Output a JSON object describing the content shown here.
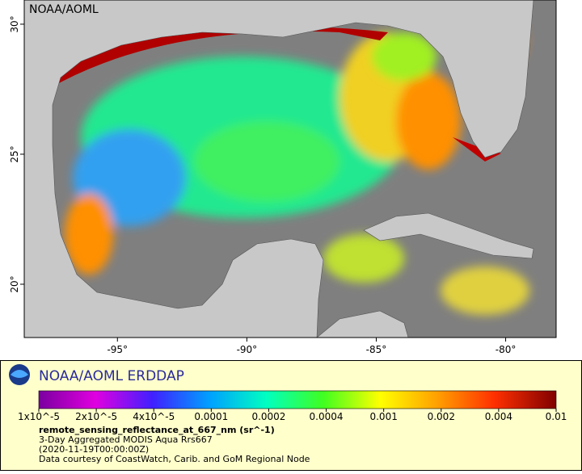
{
  "map": {
    "title": "NOAA/AOML",
    "xlim": [
      -98.6,
      -78.05
    ],
    "ylim": [
      17.95,
      30.93
    ],
    "xticks": [
      {
        "value": -95,
        "label": "-95°"
      },
      {
        "value": -90,
        "label": "-90°"
      },
      {
        "value": -85,
        "label": "-85°"
      },
      {
        "value": -80,
        "label": "-80°"
      }
    ],
    "yticks": [
      {
        "value": 20,
        "label": "20°"
      },
      {
        "value": 25,
        "label": "25°"
      },
      {
        "value": 30,
        "label": "30°"
      }
    ]
  },
  "legend": {
    "org": "NOAA/AOML ERDDAP",
    "colorbar": {
      "scale": "log",
      "ticks": [
        {
          "value": 1e-05,
          "label": "1x10^-5"
        },
        {
          "value": 2e-05,
          "label": "2x10^-5"
        },
        {
          "value": 4e-05,
          "label": "4x10^-5"
        },
        0.0001,
        0.0002,
        0.0004,
        0.001,
        0.002,
        0.004,
        0.01
      ]
    },
    "variable": "remote_sensing_reflectance_at_667_nm (sr^-1)",
    "lines": [
      "3-Day Aggregated MODIS Aqua Rrs667",
      "(2020-11-19T00:00:00Z)",
      "Data courtesy of CoastWatch, Carib. and GoM Regional Node"
    ]
  }
}
